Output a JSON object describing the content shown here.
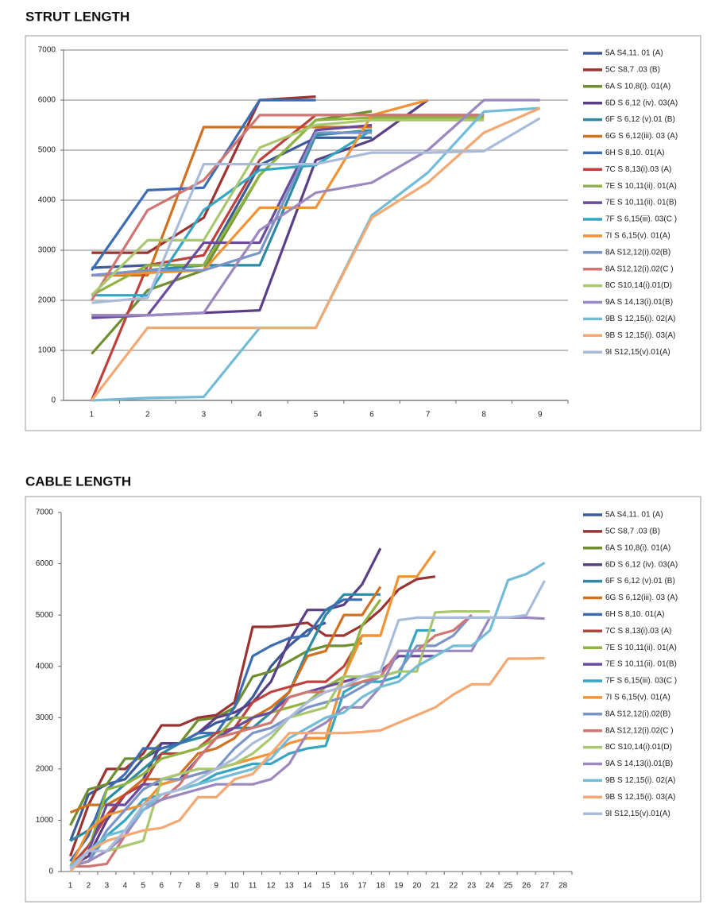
{
  "chart_data": [
    {
      "type": "line",
      "title": "STRUT LENGTH",
      "categories": [
        1,
        2,
        3,
        4,
        5,
        6,
        7,
        8,
        9
      ],
      "ylim": [
        0,
        7000
      ],
      "yticks": [
        0,
        1000,
        2000,
        3000,
        4000,
        5000,
        6000,
        7000
      ],
      "grid": true,
      "series": [
        {
          "name": "5A  S4,11. 01 (A)",
          "color": "#3a5a98",
          "values": [
            2650,
            2700,
            2700,
            4700,
            5250,
            5250,
            null,
            null,
            null
          ]
        },
        {
          "name": "5C  S8,7 .03 (B)",
          "color": "#9b3331",
          "values": [
            2950,
            2950,
            3650,
            6000,
            6070,
            null,
            null,
            null,
            null
          ]
        },
        {
          "name": "6A  S 10,8(i). 01(A)",
          "color": "#6f8f2f",
          "values": [
            930,
            2200,
            2600,
            4500,
            5600,
            5780,
            null,
            null,
            null
          ]
        },
        {
          "name": "6D  S 6,12 (iv). 03(A)",
          "color": "#5b3f86",
          "values": [
            1700,
            1700,
            1750,
            1800,
            4800,
            5200,
            6000,
            null,
            null
          ]
        },
        {
          "name": "6F  S 6,12 (v).01 (B)",
          "color": "#2c8aa3",
          "values": [
            2500,
            2600,
            2700,
            2700,
            5300,
            5400,
            null,
            null,
            null
          ]
        },
        {
          "name": "6G  S 6,12(iii). 03 (A)",
          "color": "#d1711f",
          "values": [
            2500,
            2500,
            5460,
            5460,
            5460,
            5460,
            null,
            null,
            null
          ]
        },
        {
          "name": "6H  S 8,10. 01(A)",
          "color": "#3c6db4",
          "values": [
            2600,
            4200,
            4250,
            6000,
            6000,
            null,
            null,
            null,
            null
          ]
        },
        {
          "name": "7C  S 8,13(i).03 (A)",
          "color": "#c0403c",
          "values": [
            0,
            2700,
            2900,
            4800,
            5700,
            5700,
            5700,
            5700,
            null
          ]
        },
        {
          "name": "7E  S 10,11(ii). 01(A)",
          "color": "#8fb440",
          "values": [
            2100,
            2700,
            2700,
            4500,
            5600,
            5650,
            5650,
            5650,
            null
          ]
        },
        {
          "name": "7E  S 10,11(ii). 01(B)",
          "color": "#6a4b9e",
          "values": [
            1650,
            1700,
            3150,
            3150,
            5400,
            5500,
            null,
            null,
            null
          ]
        },
        {
          "name": "7F  S 6,15(iii). 03(C )",
          "color": "#34a6c2",
          "values": [
            2100,
            2100,
            3800,
            4600,
            4700,
            5400,
            null,
            null,
            null
          ]
        },
        {
          "name": "7I  S 6,15(v). 01(A)",
          "color": "#f39232",
          "values": [
            2500,
            2550,
            2600,
            3850,
            3850,
            5700,
            6000,
            null,
            null
          ]
        },
        {
          "name": "8A  S12,12(i).02(B)",
          "color": "#7b94c8",
          "values": [
            2500,
            2600,
            2600,
            2950,
            5350,
            5350,
            null,
            null,
            null
          ]
        },
        {
          "name": "8A  S12,12(i).02(C )",
          "color": "#cf7673",
          "values": [
            2000,
            3800,
            4400,
            5700,
            5700,
            5700,
            5700,
            5700,
            null
          ]
        },
        {
          "name": "8C  S10,14(i).01(D)",
          "color": "#a9c86e",
          "values": [
            2100,
            3200,
            3200,
            5050,
            5500,
            5600,
            5600,
            5600,
            null
          ]
        },
        {
          "name": "9A  S 14,13(i).01(B)",
          "color": "#9c87bf",
          "values": [
            1700,
            1700,
            1750,
            3400,
            4150,
            4350,
            5000,
            6000,
            6000
          ]
        },
        {
          "name": "9B  S 12,15(i). 02(A)",
          "color": "#73bcd7",
          "values": [
            0,
            50,
            70,
            1450,
            1450,
            3700,
            4550,
            5770,
            5840
          ]
        },
        {
          "name": "9B  S 12,15(i). 03(A)",
          "color": "#f4a872",
          "values": [
            0,
            1450,
            1450,
            1450,
            1450,
            3650,
            4350,
            5350,
            5840
          ]
        },
        {
          "name": "9I  S12,15(v).01(A)",
          "color": "#a9bbdb",
          "values": [
            1950,
            2050,
            4720,
            4720,
            4720,
            4950,
            4950,
            4980,
            5640
          ]
        }
      ]
    },
    {
      "type": "line",
      "title": "CABLE LENGTH",
      "categories": [
        1,
        2,
        3,
        4,
        5,
        6,
        7,
        8,
        9,
        10,
        11,
        12,
        13,
        14,
        15,
        16,
        17,
        18,
        19,
        20,
        21,
        22,
        23,
        24,
        25,
        26,
        27,
        28
      ],
      "ylim": [
        0,
        7000
      ],
      "yticks": [
        0,
        1000,
        2000,
        3000,
        4000,
        5000,
        6000,
        7000
      ],
      "grid": false,
      "series": [
        {
          "name": "5A  S4,11. 01 (A)",
          "color": "#3a5a98",
          "values": [
            600,
            1500,
            1700,
            1800,
            2200,
            2400,
            2500,
            2700,
            2900,
            3000,
            3400,
            4000,
            4400,
            4700,
            4850,
            null,
            null,
            null,
            null,
            null,
            null,
            null,
            null,
            null,
            null,
            null,
            null,
            null
          ]
        },
        {
          "name": "5C  S8,7 .03 (B)",
          "color": "#9b3331",
          "values": [
            300,
            1300,
            2000,
            2000,
            2300,
            2850,
            2850,
            3000,
            3050,
            3300,
            4770,
            4770,
            4800,
            4850,
            4600,
            4600,
            4800,
            5100,
            5500,
            5700,
            5750,
            null,
            null,
            null,
            null,
            null,
            null,
            null
          ]
        },
        {
          "name": "6A  S 10,8(i). 01(A)",
          "color": "#6f8f2f",
          "values": [
            900,
            1600,
            1700,
            2200,
            2200,
            2500,
            2500,
            2950,
            3000,
            3200,
            3800,
            3900,
            4100,
            4300,
            4400,
            4400,
            4450,
            null,
            null,
            null,
            null,
            null,
            null,
            null,
            null,
            null,
            null,
            null
          ]
        },
        {
          "name": "6D  S 6,12 (iv). 03(A)",
          "color": "#5b3f86",
          "values": [
            100,
            300,
            1000,
            1500,
            1800,
            2500,
            2500,
            2700,
            3000,
            3100,
            3300,
            3700,
            4500,
            5100,
            5100,
            5200,
            5600,
            6300,
            null,
            null,
            null,
            null,
            null,
            null,
            null,
            null,
            null,
            null
          ]
        },
        {
          "name": "6F  S 6,12 (v).01 (B)",
          "color": "#2c8aa3",
          "values": [
            600,
            800,
            1400,
            1700,
            2000,
            2300,
            2500,
            2600,
            2700,
            2800,
            2800,
            3100,
            3500,
            4300,
            5000,
            5400,
            5400,
            5400,
            null,
            null,
            null,
            null,
            null,
            null,
            null,
            null,
            null,
            null
          ]
        },
        {
          "name": "6G  S 6,12(iii). 03 (A)",
          "color": "#d1711f",
          "values": [
            1150,
            1300,
            1300,
            1500,
            1800,
            1800,
            1900,
            2300,
            2400,
            2600,
            3000,
            3200,
            3500,
            4200,
            4300,
            5000,
            5000,
            5550,
            null,
            null,
            null,
            null,
            null,
            null,
            null,
            null,
            null,
            null
          ]
        },
        {
          "name": "6H  S 8,10. 01(A)",
          "color": "#3c6db4",
          "values": [
            200,
            700,
            1600,
            1900,
            2400,
            2400,
            2500,
            2700,
            2700,
            3200,
            4200,
            4400,
            4550,
            4600,
            5100,
            5300,
            5300,
            null,
            null,
            null,
            null,
            null,
            null,
            null,
            null,
            null,
            null,
            null
          ]
        },
        {
          "name": "7C  S 8,13(i).03 (A)",
          "color": "#c0403c",
          "values": [
            100,
            500,
            1100,
            1500,
            1700,
            2300,
            2300,
            2400,
            2700,
            2800,
            3300,
            3500,
            3600,
            3700,
            3700,
            4000,
            4600,
            4600,
            null,
            null,
            null,
            null,
            null,
            null,
            null,
            null,
            null,
            null
          ]
        },
        {
          "name": "7E  S 10,11(ii). 01(A)",
          "color": "#8fb440",
          "values": [
            100,
            400,
            1600,
            1700,
            1900,
            2200,
            2300,
            2400,
            2600,
            3000,
            3000,
            3100,
            3200,
            3300,
            3600,
            3800,
            4800,
            5300,
            null,
            null,
            null,
            null,
            null,
            null,
            null,
            null,
            null,
            null
          ]
        },
        {
          "name": "7E  S 10,11(ii). 01(B)",
          "color": "#6a4b9e",
          "values": [
            50,
            400,
            1300,
            1300,
            1700,
            1700,
            1800,
            2200,
            2600,
            2800,
            3000,
            3100,
            3400,
            3500,
            3600,
            3700,
            3800,
            3900,
            4200,
            4200,
            4200,
            null,
            null,
            null,
            null,
            null,
            null,
            null
          ]
        },
        {
          "name": "7F  S 6,15(iii). 03(C )",
          "color": "#34a6c2",
          "values": [
            100,
            200,
            700,
            1000,
            1400,
            1500,
            1600,
            1700,
            1900,
            2000,
            2100,
            2100,
            2300,
            2400,
            2450,
            3500,
            3700,
            3700,
            3800,
            4700,
            4700,
            null,
            null,
            null,
            null,
            null,
            null,
            null
          ]
        },
        {
          "name": "7I  S 6,15(v). 01(A)",
          "color": "#f39232",
          "values": [
            100,
            800,
            1100,
            1200,
            1300,
            1700,
            1800,
            1900,
            2000,
            2100,
            2200,
            2300,
            2500,
            2600,
            2600,
            3800,
            4600,
            4600,
            5750,
            5750,
            6250,
            null,
            null,
            null,
            null,
            null,
            null,
            null
          ]
        },
        {
          "name": "8A  S12,12(i).02(B)",
          "color": "#7b94c8",
          "values": [
            100,
            200,
            800,
            1200,
            1600,
            1800,
            1800,
            1900,
            2000,
            2400,
            2700,
            2800,
            3000,
            3200,
            3300,
            3400,
            3600,
            3800,
            3900,
            4400,
            4400,
            4600,
            5000,
            null,
            null,
            null,
            null,
            null
          ]
        },
        {
          "name": "8A  S12,12(i).02(C )",
          "color": "#cf7673",
          "values": [
            100,
            100,
            150,
            700,
            1300,
            1400,
            1700,
            2200,
            2600,
            2700,
            2800,
            2900,
            3400,
            3500,
            3500,
            3600,
            3700,
            3800,
            4300,
            4300,
            4600,
            4700,
            5000,
            null,
            null,
            null,
            null,
            null
          ]
        },
        {
          "name": "8C  S10,14(i).01(D)",
          "color": "#a9c86e",
          "values": [
            100,
            200,
            400,
            500,
            600,
            1800,
            1900,
            2000,
            2000,
            2100,
            2300,
            2600,
            3000,
            3100,
            3200,
            3800,
            3800,
            3800,
            3900,
            3900,
            5050,
            5070,
            5070,
            5070,
            null,
            null,
            null,
            null
          ]
        },
        {
          "name": "9A  S 14,13(i).01(B)",
          "color": "#9c87bf",
          "values": [
            100,
            200,
            400,
            700,
            1200,
            1400,
            1500,
            1600,
            1700,
            1700,
            1700,
            1800,
            2100,
            2700,
            2900,
            3200,
            3200,
            3600,
            4300,
            4300,
            4300,
            4300,
            4300,
            4950,
            4950,
            4950,
            4930,
            null
          ]
        },
        {
          "name": "9B  S 12,15(i). 02(A)",
          "color": "#73bcd7",
          "values": [
            100,
            400,
            700,
            800,
            1200,
            1500,
            1600,
            1700,
            1800,
            1900,
            2000,
            2200,
            2600,
            2800,
            3000,
            3100,
            3400,
            3600,
            3700,
            4000,
            4200,
            4400,
            4400,
            4700,
            5680,
            5800,
            6020,
            null
          ]
        },
        {
          "name": "9B  S 12,15(i). 03(A)",
          "color": "#f4a872",
          "values": [
            0,
            400,
            600,
            700,
            800,
            850,
            1000,
            1450,
            1450,
            1800,
            1900,
            2300,
            2700,
            2700,
            2700,
            2700,
            2720,
            2750,
            2900,
            3050,
            3200,
            3450,
            3650,
            3650,
            4150,
            4150,
            4160,
            null
          ]
        },
        {
          "name": "9I  S12,15(v).01(A)",
          "color": "#a9bbdb",
          "values": [
            50,
            400,
            400,
            800,
            1300,
            1500,
            1600,
            1800,
            2000,
            2200,
            2500,
            2700,
            3000,
            3300,
            3500,
            3600,
            3800,
            3900,
            4900,
            4950,
            4950,
            4950,
            4950,
            4950,
            4950,
            5000,
            5670,
            null
          ]
        }
      ]
    }
  ]
}
